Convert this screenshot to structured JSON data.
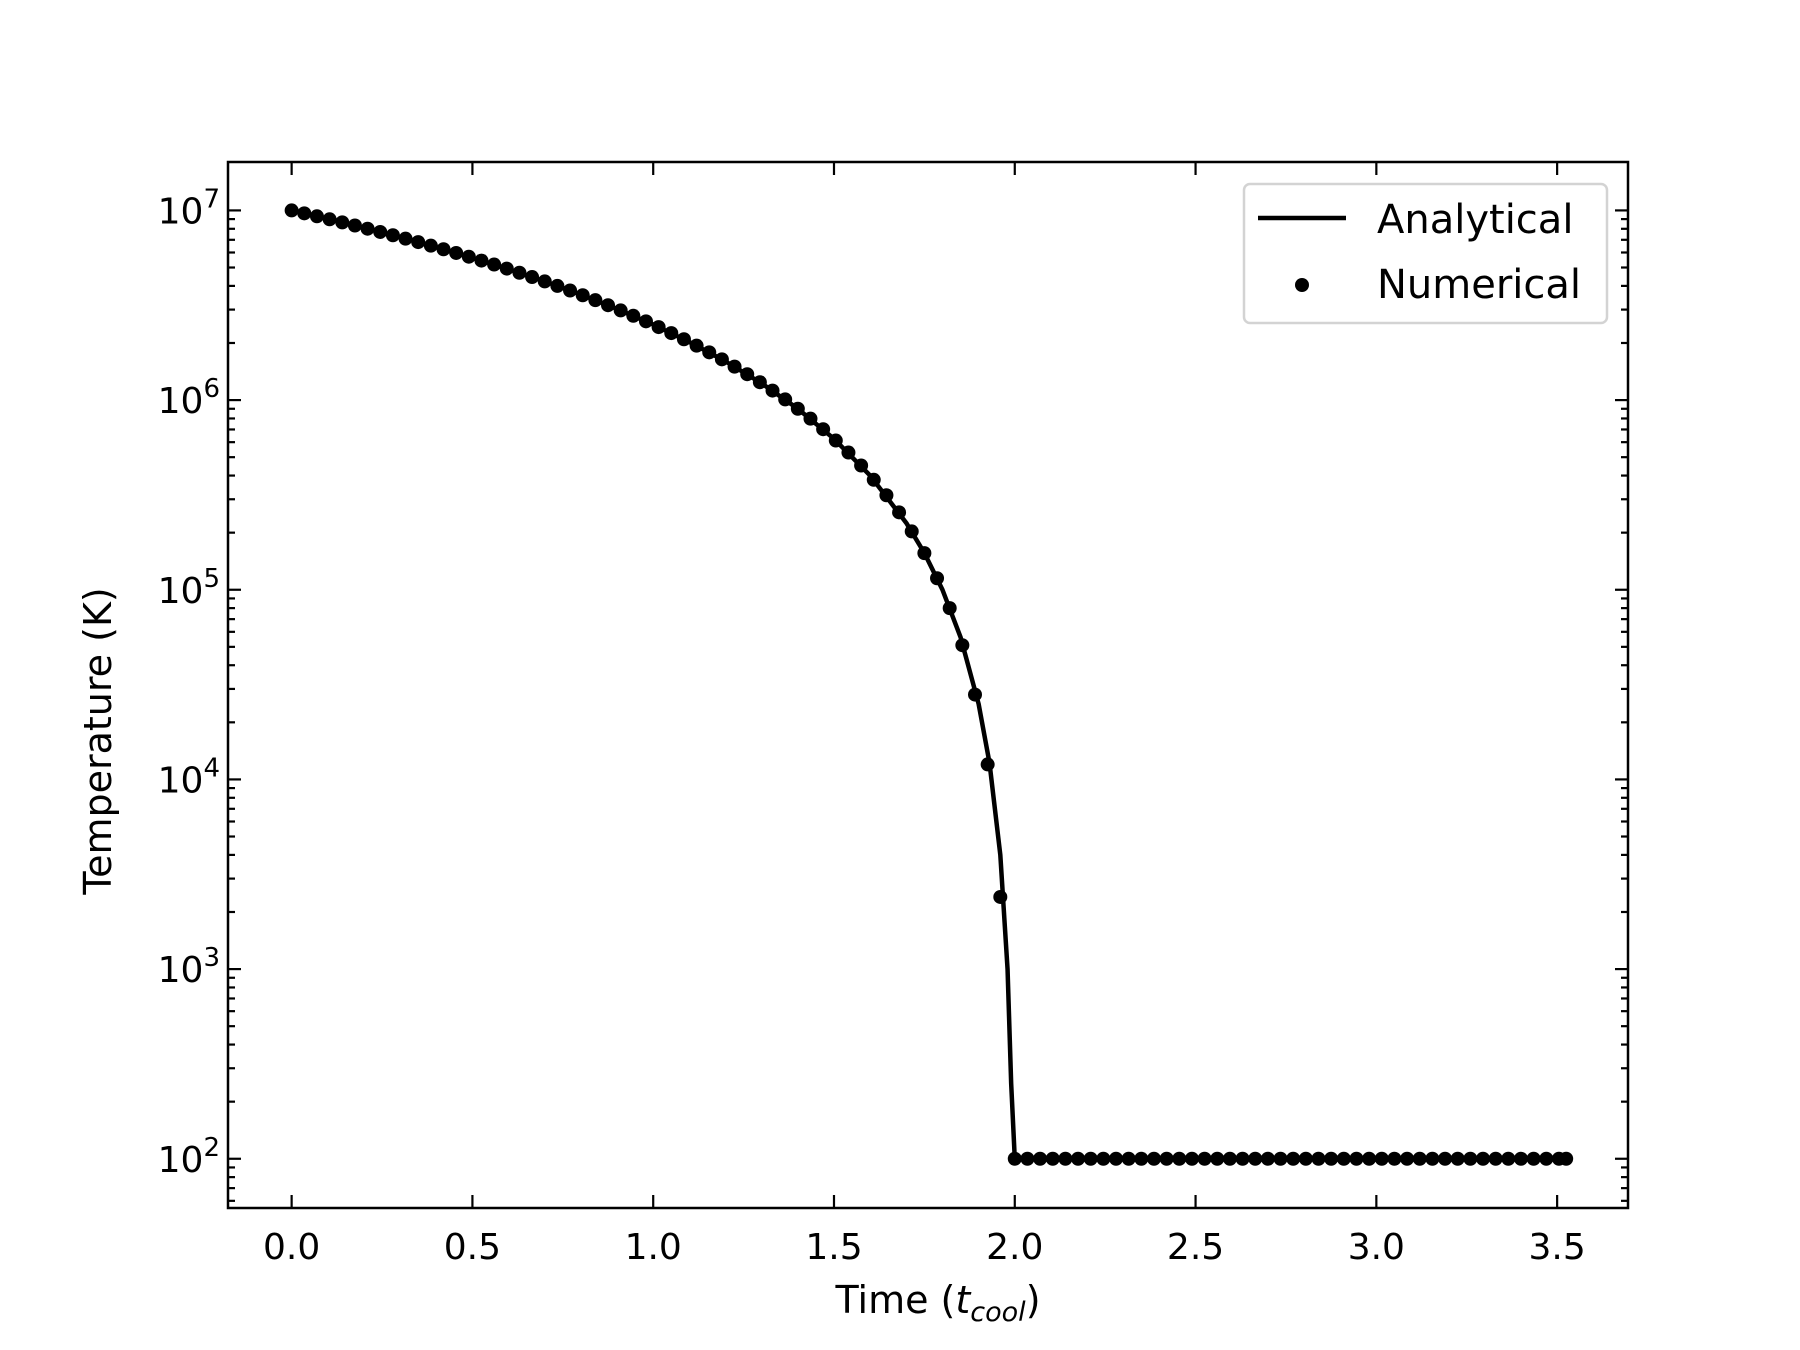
{
  "chart_data": {
    "type": "line",
    "title": "",
    "xlabel": "Time (",
    "xlabel_symbol": "t",
    "xlabel_subscript": "cool",
    "xlabel_suffix": ")",
    "ylabel": "Temperature (K)",
    "xlim": [
      -0.176,
      3.696
    ],
    "ylim": [
      55,
      18000000
    ],
    "yscale": "log",
    "grid": false,
    "legend_position": "top-right",
    "x_ticks": [
      0.0,
      0.5,
      1.0,
      1.5,
      2.0,
      2.5,
      3.0,
      3.5
    ],
    "x_tick_labels": [
      "0.0",
      "0.5",
      "1.0",
      "1.5",
      "2.0",
      "2.5",
      "3.0",
      "3.5"
    ],
    "y_ticks": [
      100,
      1000,
      10000,
      100000,
      1000000,
      10000000
    ],
    "y_tick_base": [
      "10",
      "10",
      "10",
      "10",
      "10",
      "10"
    ],
    "y_tick_exp": [
      "2",
      "3",
      "4",
      "5",
      "6",
      "7"
    ],
    "series": [
      {
        "name": "Analytical",
        "style": "line",
        "color": "#000000",
        "x": [
          0.0,
          0.1,
          0.2,
          0.3,
          0.4,
          0.5,
          0.6,
          0.7,
          0.8,
          0.9,
          1.0,
          1.1,
          1.2,
          1.3,
          1.4,
          1.5,
          1.6,
          1.7,
          1.75,
          1.8,
          1.85,
          1.9,
          1.93,
          1.96,
          1.98,
          1.99,
          2.0,
          2.05,
          2.5,
          3.0,
          3.525
        ],
        "y": [
          10000000,
          9025000,
          8100000,
          7225000,
          6400000,
          5625000,
          4900000,
          4225000,
          3600000,
          3025000,
          2500000,
          2025000,
          1600000,
          1225000,
          900000,
          625000,
          400000,
          225000,
          156250,
          100000,
          56250,
          25000,
          12250,
          4000,
          1000,
          250,
          100,
          100,
          100,
          100,
          100
        ]
      },
      {
        "name": "Numerical",
        "style": "markers",
        "color": "#000000",
        "x": [
          0.0,
          0.035,
          0.07,
          0.105,
          0.14,
          0.175,
          0.21,
          0.245,
          0.28,
          0.315,
          0.35,
          0.385,
          0.42,
          0.455,
          0.49,
          0.525,
          0.56,
          0.595,
          0.63,
          0.665,
          0.7,
          0.735,
          0.77,
          0.805,
          0.84,
          0.875,
          0.91,
          0.945,
          0.98,
          1.015,
          1.05,
          1.085,
          1.12,
          1.155,
          1.19,
          1.225,
          1.26,
          1.295,
          1.33,
          1.365,
          1.4,
          1.435,
          1.47,
          1.505,
          1.54,
          1.575,
          1.61,
          1.645,
          1.68,
          1.715,
          1.75,
          1.785,
          1.82,
          1.855,
          1.89,
          1.925,
          1.96,
          2.0,
          2.035,
          2.07,
          2.105,
          2.14,
          2.175,
          2.21,
          2.245,
          2.28,
          2.315,
          2.35,
          2.385,
          2.42,
          2.455,
          2.49,
          2.525,
          2.56,
          2.595,
          2.63,
          2.665,
          2.7,
          2.735,
          2.77,
          2.805,
          2.84,
          2.875,
          2.91,
          2.945,
          2.98,
          3.015,
          3.05,
          3.085,
          3.12,
          3.155,
          3.19,
          3.225,
          3.26,
          3.295,
          3.33,
          3.365,
          3.4,
          3.435,
          3.47,
          3.505,
          3.525
        ],
        "y": [
          10000000,
          9653000,
          9312000,
          8978000,
          8649000,
          8326000,
          8010000,
          7700000,
          7396000,
          7098000,
          6806000,
          6520000,
          6241000,
          5967000,
          5700000,
          5439000,
          5184000,
          4935000,
          4692000,
          4455000,
          4225000,
          4000000,
          3782000,
          3570000,
          3364000,
          3164000,
          2970000,
          2783000,
          2601000,
          2426000,
          2256000,
          2093000,
          1936000,
          1785000,
          1640000,
          1501000,
          1369000,
          1242000,
          1122000,
          1008000,
          900000,
          798000,
          702000,
          612000,
          529000,
          452000,
          380000,
          315000,
          256000,
          203000,
          156000,
          115000,
          80000,
          51000,
          28000,
          12000,
          2400,
          100,
          100,
          100,
          100,
          100,
          100,
          100,
          100,
          100,
          100,
          100,
          100,
          100,
          100,
          100,
          100,
          100,
          100,
          100,
          100,
          100,
          100,
          100,
          100,
          100,
          100,
          100,
          100,
          100,
          100,
          100,
          100,
          100,
          100,
          100,
          100,
          100,
          100,
          100,
          100,
          100,
          100,
          100,
          100,
          100
        ]
      }
    ]
  }
}
